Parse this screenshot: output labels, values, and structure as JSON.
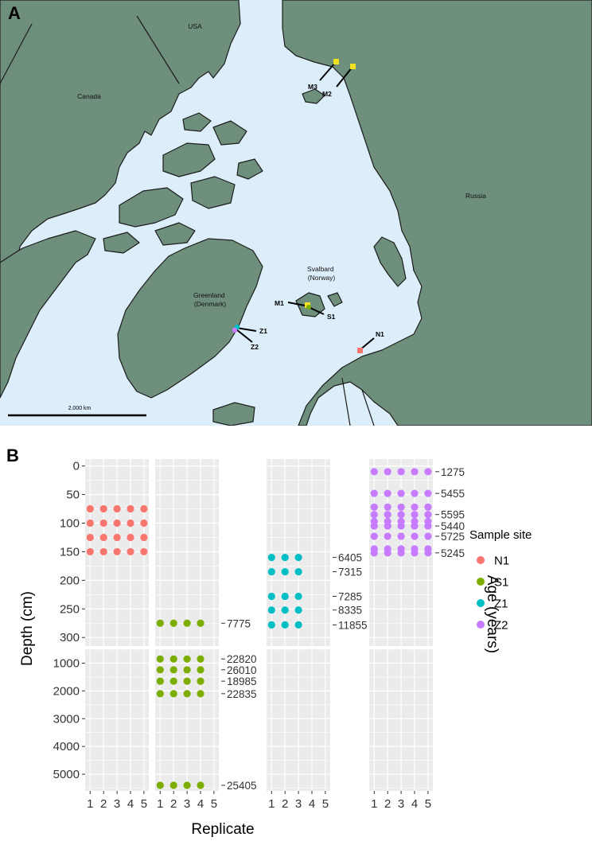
{
  "map": {
    "panel_label": "A",
    "colors": {
      "ocean": "#dceefa",
      "land": "#6f8f7d",
      "border": "#1c1c1c"
    },
    "regions": [
      {
        "id": "usa",
        "label": "USA"
      },
      {
        "id": "canada",
        "label": "Canada"
      },
      {
        "id": "russia",
        "label": "Russia"
      },
      {
        "id": "greenland",
        "label": "Greenland\n(Denmark)"
      },
      {
        "id": "svalbard",
        "label": "Svalbard\n(Norway)"
      }
    ],
    "sites": [
      {
        "id": "M3",
        "label": "M3",
        "color": "#f2e11f"
      },
      {
        "id": "M2",
        "label": "M2",
        "color": "#f2e11f"
      },
      {
        "id": "M1",
        "label": "M1",
        "color": "#f2e11f"
      },
      {
        "id": "S1",
        "label": "S1",
        "color": "#7cae00"
      },
      {
        "id": "Z1",
        "label": "Z1",
        "color": "#00bfc4"
      },
      {
        "id": "Z2",
        "label": "Z2",
        "color": "#c77cff"
      },
      {
        "id": "N1",
        "label": "N1",
        "color": "#f8766d"
      }
    ],
    "scale_bar": {
      "label": "2.000 km"
    }
  },
  "chart_data": {
    "type": "scatter",
    "panel_label": "B",
    "xlabel": "Replicate",
    "ylabel": "Depth (cm)",
    "secondary_label": "Age (years)",
    "x_ticks": [
      1,
      2,
      3,
      4,
      5
    ],
    "y_ticks_upper": [
      0,
      50,
      100,
      150,
      200,
      250,
      300
    ],
    "y_ticks_lower": [
      1000,
      2000,
      3000,
      4000,
      5000
    ],
    "ylim_upper": [
      -12,
      315
    ],
    "ylim_lower": [
      500,
      5600
    ],
    "legend": {
      "title": "Sample site",
      "entries": [
        {
          "name": "N1",
          "color": "#f8766d"
        },
        {
          "name": "S1",
          "color": "#7cae00"
        },
        {
          "name": "Z1",
          "color": "#00bfc4"
        },
        {
          "name": "Z2",
          "color": "#c77cff"
        }
      ]
    },
    "series": [
      {
        "name": "N1",
        "color": "#f8766d",
        "replicates": 5,
        "samples": [
          {
            "depth": 75,
            "age": ""
          },
          {
            "depth": 100,
            "age": ""
          },
          {
            "depth": 125,
            "age": ""
          },
          {
            "depth": 150,
            "age": ""
          }
        ]
      },
      {
        "name": "S1",
        "color": "#7cae00",
        "replicates": 4,
        "samples": [
          {
            "depth": 275,
            "age": "7775"
          },
          {
            "depth": 850,
            "age": "22820"
          },
          {
            "depth": 1240,
            "age": "26010"
          },
          {
            "depth": 1650,
            "age": "18985"
          },
          {
            "depth": 2100,
            "age": "22835"
          },
          {
            "depth": 5400,
            "age": "25405"
          }
        ]
      },
      {
        "name": "Z1",
        "color": "#00bfc4",
        "replicates": 3,
        "samples": [
          {
            "depth": 160,
            "age": "6405"
          },
          {
            "depth": 185,
            "age": "7315"
          },
          {
            "depth": 228,
            "age": "7285"
          },
          {
            "depth": 252,
            "age": "8335"
          },
          {
            "depth": 278,
            "age": "11855"
          }
        ]
      },
      {
        "name": "Z2",
        "color": "#c77cff",
        "replicates": 5,
        "samples": [
          {
            "depth": 10,
            "age": "1275"
          },
          {
            "depth": 48,
            "age": "5455"
          },
          {
            "depth": 72,
            "age": ""
          },
          {
            "depth": 85,
            "age": "5595"
          },
          {
            "depth": 97,
            "age": ""
          },
          {
            "depth": 105,
            "age": "5440"
          },
          {
            "depth": 123,
            "age": "5725"
          },
          {
            "depth": 145,
            "age": ""
          },
          {
            "depth": 152,
            "age": "5245"
          }
        ]
      }
    ]
  }
}
